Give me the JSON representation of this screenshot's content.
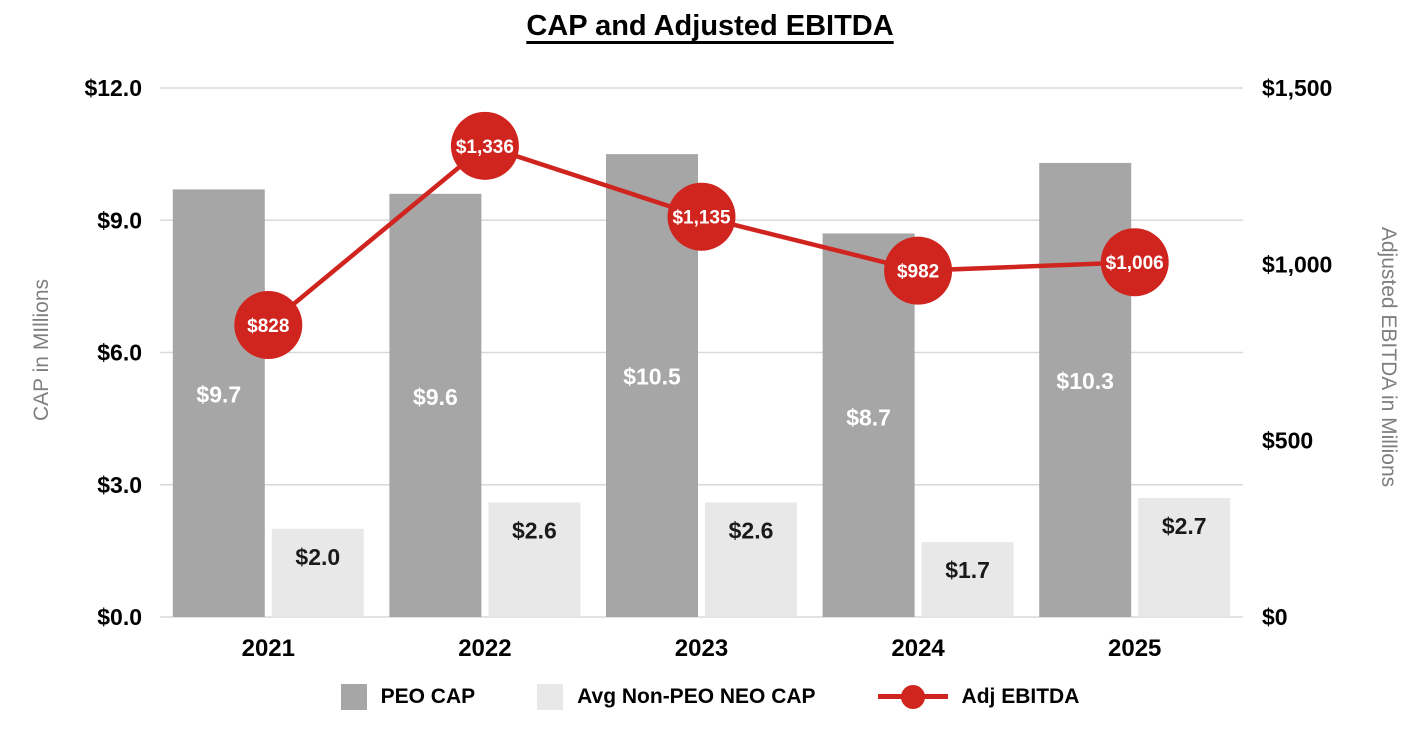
{
  "chart_data": {
    "type": "combo-bar-line",
    "title": "CAP and Adjusted EBITDA",
    "categories": [
      "2021",
      "2022",
      "2023",
      "2024",
      "2025"
    ],
    "series": [
      {
        "name": "PEO CAP",
        "type": "bar",
        "axis": "left",
        "color": "#a6a6a6",
        "label_color": "#ffffff",
        "values": [
          9.7,
          9.6,
          10.5,
          8.7,
          10.3
        ],
        "labels": [
          "$9.7",
          "$9.6",
          "$10.5",
          "$8.7",
          "$10.3"
        ]
      },
      {
        "name": "Avg Non-PEO NEO CAP",
        "type": "bar",
        "axis": "left",
        "color": "#e8e8e8",
        "label_color": "#1a1a1a",
        "values": [
          2.0,
          2.6,
          2.6,
          1.7,
          2.7
        ],
        "labels": [
          "$2.0",
          "$2.6",
          "$2.6",
          "$1.7",
          "$2.7"
        ]
      },
      {
        "name": "Adj EBITDA",
        "type": "line",
        "axis": "right",
        "color": "#d0241f",
        "label_color": "#ffffff",
        "values": [
          828,
          1336,
          1135,
          982,
          1006
        ],
        "labels": [
          "$828",
          "$1,336",
          "$1,135",
          "$982",
          "$1,006"
        ]
      }
    ],
    "left_axis": {
      "title": "CAP in MIllions",
      "max": 12,
      "ticks": [
        0,
        3,
        6,
        9,
        12
      ],
      "tick_labels": [
        "$0.0",
        "$3.0",
        "$6.0",
        "$9.0",
        "$12.0"
      ]
    },
    "right_axis": {
      "title": "Adjusted EBITDA in Millions",
      "max": 1500,
      "ticks": [
        0,
        500,
        1000,
        1500
      ],
      "tick_labels": [
        "$0",
        "$500",
        "$1,000",
        "$1,500"
      ]
    },
    "grid": true,
    "legend_position": "bottom"
  }
}
